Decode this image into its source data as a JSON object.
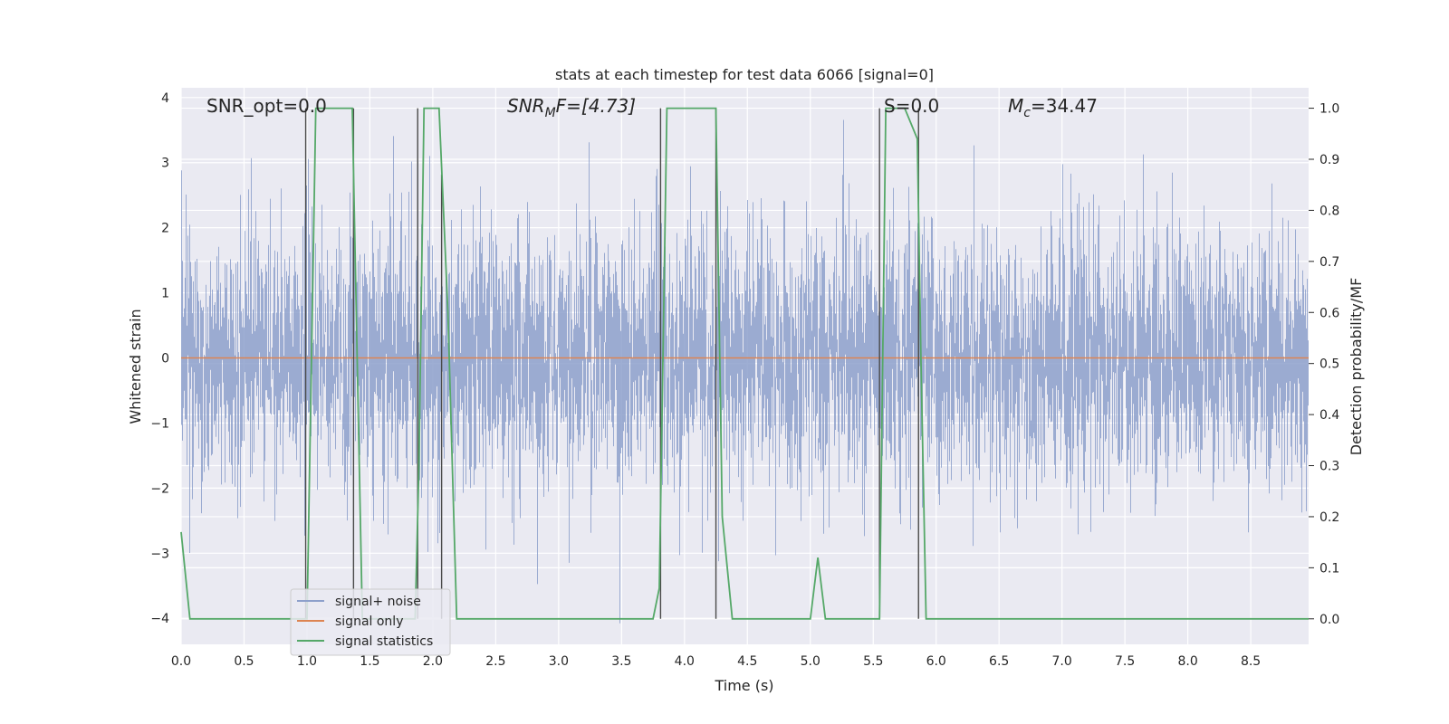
{
  "chart_data": {
    "type": "line",
    "title": "stats at each timestep for test data 6066 [signal=0]",
    "xlabel": "Time (s)",
    "ylabel": "Whitened strain",
    "y2label": "Detection probability/MF",
    "xlim": [
      0.0,
      8.96
    ],
    "ylim": [
      -4.4,
      4.15
    ],
    "y2lim": [
      -0.05,
      1.04
    ],
    "x_ticks": [
      0.0,
      0.5,
      1.0,
      1.5,
      2.0,
      2.5,
      3.0,
      3.5,
      4.0,
      4.5,
      5.0,
      5.5,
      6.0,
      6.5,
      7.0,
      7.5,
      8.0,
      8.5
    ],
    "x_tick_labels": [
      "0.0",
      "0.5",
      "1.0",
      "1.5",
      "2.0",
      "2.5",
      "3.0",
      "3.5",
      "4.0",
      "4.5",
      "5.0",
      "5.5",
      "6.0",
      "6.5",
      "7.0",
      "7.5",
      "8.0",
      "8.5"
    ],
    "y_ticks": [
      -4,
      -3,
      -2,
      -1,
      0,
      1,
      2,
      3,
      4
    ],
    "y_tick_labels": [
      "−4",
      "−3",
      "−2",
      "−1",
      "0",
      "1",
      "2",
      "3",
      "4"
    ],
    "y2_ticks": [
      0.0,
      0.1,
      0.2,
      0.3,
      0.4,
      0.5,
      0.6,
      0.7,
      0.8,
      0.9,
      1.0
    ],
    "y2_tick_labels": [
      "0.0",
      "0.1",
      "0.2",
      "0.3",
      "0.4",
      "0.5",
      "0.6",
      "0.7",
      "0.8",
      "0.9",
      "1.0"
    ],
    "grid": true,
    "legend_placement": "lower-left",
    "annotations": {
      "snr_opt": "SNR_opt=0.0",
      "snr_mf_main": "SNR",
      "snr_mf_sub": "M",
      "snr_mf_rest": "F=[4.73]",
      "s_value": "S=0.0",
      "mc_main": "M",
      "mc_sub": "c",
      "mc_rest": "=34.47"
    },
    "series": [
      {
        "name": "signal+ noise",
        "color": "#8da0cb",
        "axis": "left",
        "description_kind": "noise",
        "sigma": 1.0,
        "sample_rate": 512
      },
      {
        "name": "signal only",
        "color": "#dd8452",
        "axis": "left",
        "x": [
          0.0,
          8.96
        ],
        "y": [
          0.0,
          0.0
        ]
      },
      {
        "name": "signal statistics",
        "color": "#55a868",
        "axis": "right",
        "x": [
          0.0,
          0.07,
          0.14,
          0.5,
          0.99,
          1.0,
          1.07,
          1.14,
          1.3,
          1.36,
          1.4,
          1.44,
          1.5,
          1.86,
          1.89,
          1.93,
          2.0,
          2.05,
          2.12,
          2.19,
          2.3,
          3.7,
          3.75,
          3.8,
          3.86,
          4.0,
          4.2,
          4.25,
          4.3,
          4.38,
          4.5,
          4.94,
          5.0,
          5.06,
          5.12,
          5.5,
          5.55,
          5.6,
          5.65,
          5.75,
          5.85,
          5.88,
          5.92,
          6.0,
          8.96
        ],
        "y": [
          0.17,
          0.0,
          0.0,
          0.0,
          0.0,
          0.0,
          1.0,
          1.0,
          1.0,
          1.0,
          0.5,
          0.0,
          0.0,
          0.0,
          0.3,
          1.0,
          1.0,
          1.0,
          0.6,
          0.0,
          0.0,
          0.0,
          0.0,
          0.06,
          1.0,
          1.0,
          1.0,
          1.0,
          0.2,
          0.0,
          0.0,
          0.0,
          0.0,
          0.12,
          0.0,
          0.0,
          0.0,
          1.0,
          1.0,
          1.0,
          0.94,
          0.5,
          0.0,
          0.0,
          0.0
        ]
      }
    ],
    "vertical_markers": [
      {
        "x": 0.99,
        "ymin": 0.0,
        "ymax": 1.0
      },
      {
        "x": 1.37,
        "ymin": 0.0,
        "ymax": 1.0
      },
      {
        "x": 1.88,
        "ymin": 0.0,
        "ymax": 1.0
      },
      {
        "x": 2.07,
        "ymin": 0.0,
        "ymax": 0.87
      },
      {
        "x": 3.81,
        "ymin": 0.0,
        "ymax": 1.0
      },
      {
        "x": 4.25,
        "ymin": 0.0,
        "ymax": 1.0
      },
      {
        "x": 5.55,
        "ymin": 0.0,
        "ymax": 1.0
      },
      {
        "x": 5.86,
        "ymin": 0.0,
        "ymax": 1.0
      }
    ],
    "legend": [
      {
        "label": "signal+ noise",
        "color": "#8da0cb"
      },
      {
        "label": "signal only",
        "color": "#dd8452"
      },
      {
        "label": "signal statistics",
        "color": "#55a868"
      }
    ]
  }
}
